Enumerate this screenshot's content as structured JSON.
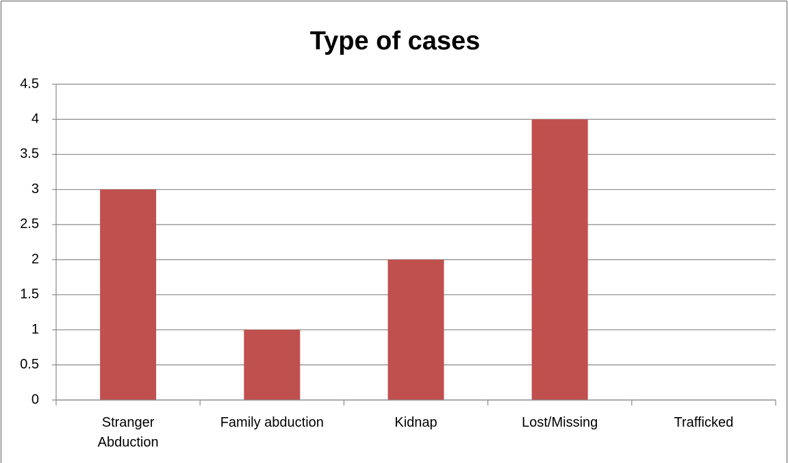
{
  "chart_data": {
    "type": "bar",
    "title": "Type of cases",
    "categories": [
      "Stranger Abduction",
      "Family abduction",
      "Kidnap",
      "Lost/Missing",
      "Trafficked"
    ],
    "values": [
      3,
      1,
      2,
      4,
      0
    ],
    "color": "#c0504d",
    "ylim": [
      0,
      4.5
    ],
    "yticks": [
      0,
      0.5,
      1,
      1.5,
      2,
      2.5,
      3,
      3.5,
      4,
      4.5
    ],
    "grid": true
  }
}
